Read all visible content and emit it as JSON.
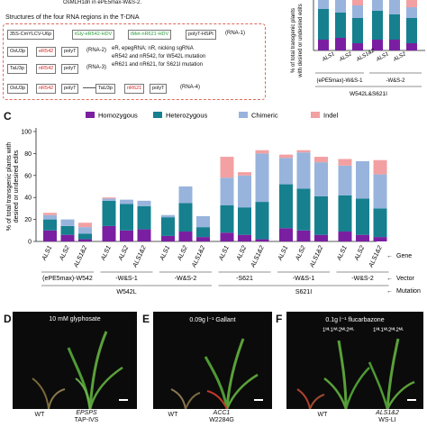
{
  "top": {
    "snippet": "OsMLH1dn in ePE5max-W&S-2.",
    "structures_title": "Structures of the four RNA regions in the T-DNA",
    "rna1": {
      "promoter": "35S-CmYLCV-U6p",
      "tgly": "tGly-eR542-HDV",
      "tmet": "tMet-nR621-HDV",
      "term": "polyT-HSPt",
      "tag": "(RNA-1)"
    },
    "rna2": {
      "promoter": "OsU3p",
      "guide": "eR542",
      "term": "polyT",
      "tag": "(RNA-2)"
    },
    "rna3": {
      "promoter": "TaU3p",
      "guide": "nR542",
      "term": "polyT",
      "tag": "(RNA-3)"
    },
    "rna4": {
      "promoter": "OsU3p",
      "guide1": "nR542",
      "term1": "polyT",
      "promoter2": "TaU3p",
      "guide2": "nR621",
      "term2": "polyT",
      "tag": "(RNA-4)"
    },
    "legend_lines": [
      "eR, epegRNA; nR, nicking sgRNA",
      "eR542 and nR542, for W542L mutation",
      "eR621 and nR621, for S621I mutation"
    ]
  },
  "panelB": {
    "ylabel": "% of total transgenic plants with desired or undesired edits",
    "xticks": [
      "ALS1",
      "ALS2",
      "ALS1&2",
      "ALS1",
      "ALS2"
    ],
    "vector_groups": [
      "(ePE5max)-W&S-1",
      "-W&S-2"
    ],
    "mutation": "W542L&S621I"
  },
  "panelC": {
    "letter": "C",
    "row_labels": {
      "gene": "Gene",
      "vector": "Vector",
      "mutation": "Mutation"
    },
    "vector_groups": [
      "(ePE5max)-W542",
      "-W&S-1",
      "-W&S-2",
      "-S621",
      "-W&S-1",
      "-W&S-2"
    ],
    "mutation_groups": [
      "W542L",
      "S621I"
    ]
  },
  "chart_data": {
    "type": "bar",
    "stacked": true,
    "ylabel": "% of total transgenic plants with desired or undesired edits",
    "ylim": [
      0,
      100
    ],
    "yticks": [
      0,
      20,
      40,
      60,
      80,
      100
    ],
    "categories": [
      "ALS1",
      "ALS2",
      "ALS1&2",
      "ALS1",
      "ALS2",
      "ALS1&2",
      "ALS1",
      "ALS2",
      "ALS1&2",
      "ALS1",
      "ALS2",
      "ALS1&2",
      "ALS1",
      "ALS2",
      "ALS1&2",
      "ALS1",
      "ALS2",
      "ALS1&2"
    ],
    "legend_position": "top",
    "series": [
      {
        "name": "Homozygous",
        "color": "#7a1fa2",
        "values": [
          10,
          6,
          2,
          14,
          10,
          11,
          5,
          9,
          4,
          8,
          6,
          2,
          12,
          10,
          6,
          9,
          6,
          4
        ]
      },
      {
        "name": "Heterozygous",
        "color": "#16808f",
        "values": [
          10,
          8,
          5,
          23,
          24,
          21,
          17,
          26,
          9,
          25,
          25,
          34,
          40,
          38,
          35,
          33,
          33,
          26
        ]
      },
      {
        "name": "Chimeric",
        "color": "#98b4dc",
        "values": [
          4,
          6,
          6,
          2,
          4,
          5,
          2,
          15,
          10,
          25,
          29,
          44,
          24,
          33,
          31,
          27,
          34,
          31
        ]
      },
      {
        "name": "Indel",
        "color": "#f2a0a2",
        "values": [
          2,
          0,
          4,
          1,
          0,
          0,
          0,
          0,
          0,
          19,
          3,
          3,
          3,
          2,
          5,
          6,
          0,
          13
        ]
      }
    ]
  },
  "panelD": {
    "letter": "D",
    "label": "10 mM glyphosate",
    "wt": "WT",
    "line": "EPSPS",
    "line2": "TAP-IVS"
  },
  "panelE": {
    "letter": "E",
    "label": "0.09g l⁻¹ Gallant",
    "wt": "WT",
    "line": "ACC1",
    "line2": "W2284G"
  },
  "panelF": {
    "letter": "F",
    "label": "0.1g l⁻¹ flucarbazone",
    "wt": "WT",
    "line": "ALS1&2",
    "line2": "WS-LI",
    "plant1": "1ᴹᴸ1ᵂᴸ2ᴹᴸ2ᵂᴸ",
    "plant2": "1ᴹᴸ1ᴹᴸ2ᴹᴸ2ᴹᴸ"
  },
  "colors": {
    "accent_red": "#d21f1f",
    "accent_green": "#2a9a3a"
  }
}
